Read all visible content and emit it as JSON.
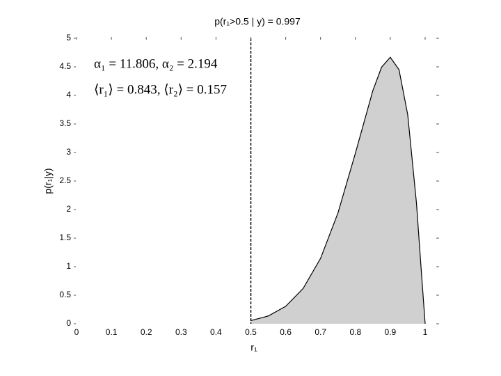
{
  "chart_data": {
    "type": "area",
    "title": "p(r₁>0.5 | y) = 0.997",
    "x_label": "r₁",
    "y_label": "p(r₁|y)",
    "annotations": [
      "α₁ = 11.806, α₂ = 2.194",
      "⟨r₁⟩ = 0.843, ⟨r₂⟩ = 0.157"
    ],
    "x": [
      0.5,
      0.55,
      0.6,
      0.65,
      0.7,
      0.75,
      0.8,
      0.85,
      0.875,
      0.9,
      0.925,
      0.95,
      0.975,
      0.99,
      1
    ],
    "series": [
      {
        "name": "p(r₁|y)",
        "color": "#d0d0d0",
        "values": [
          0.056,
          0.137,
          0.306,
          0.619,
          1.146,
          1.943,
          2.99,
          4.084,
          4.494,
          4.668,
          4.451,
          3.661,
          2.119,
          0.836,
          0
        ]
      }
    ],
    "vline": 0.5,
    "xlim": [
      0,
      1
    ],
    "ylim": [
      0,
      5
    ],
    "xticks": [
      0,
      0.1,
      0.2,
      0.3,
      0.4,
      0.5,
      0.6,
      0.7,
      0.8,
      0.9,
      1
    ],
    "yticks": [
      0,
      0.5,
      1,
      1.5,
      2,
      2.5,
      3,
      3.5,
      4,
      4.5,
      5
    ]
  }
}
